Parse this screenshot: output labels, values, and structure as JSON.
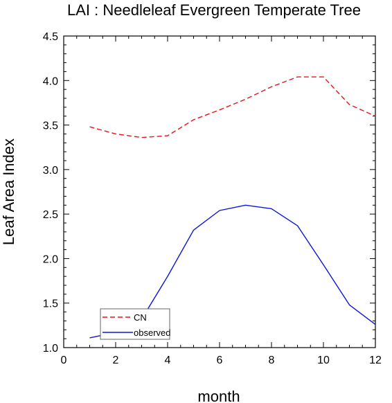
{
  "chart_data": {
    "type": "line",
    "title": "LAI : Needleleaf Evergreen Temperate Tree",
    "xlabel": "month",
    "ylabel": "Leaf Area Index",
    "xlim": [
      0,
      12
    ],
    "ylim": [
      1.0,
      4.5
    ],
    "xticks": [
      0,
      2,
      4,
      6,
      8,
      10,
      12
    ],
    "xtick_labels": [
      "0",
      "2",
      "4",
      "6",
      "8",
      "10",
      "12"
    ],
    "yticks": [
      1.0,
      1.5,
      2.0,
      2.5,
      3.0,
      3.5,
      4.0,
      4.5
    ],
    "ytick_labels": [
      "1.0",
      "1.5",
      "2.0",
      "2.5",
      "3.0",
      "3.5",
      "4.0",
      "4.5"
    ],
    "grid": false,
    "legend_position": "bottom-left",
    "x": [
      1,
      2,
      3,
      4,
      5,
      6,
      7,
      8,
      9,
      10,
      11,
      12
    ],
    "series": [
      {
        "name": "CN",
        "color": "#e8141c",
        "dash": "dashed",
        "values": [
          3.48,
          3.4,
          3.36,
          3.38,
          3.56,
          3.67,
          3.79,
          3.93,
          4.04,
          4.04,
          3.73,
          3.6
        ]
      },
      {
        "name": "observed",
        "color": "#0a14dc",
        "dash": "solid",
        "values": [
          1.11,
          1.17,
          1.32,
          1.8,
          2.32,
          2.54,
          2.6,
          2.56,
          2.37,
          1.93,
          1.48,
          1.26
        ]
      }
    ]
  }
}
